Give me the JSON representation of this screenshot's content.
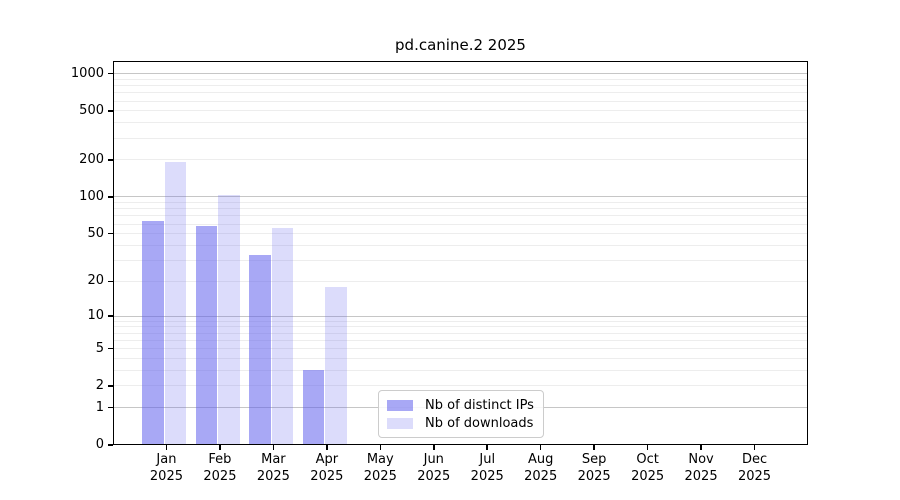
{
  "chart_data": {
    "type": "bar",
    "title": "pd.canine.2 2025",
    "categories": [
      "Jan",
      "Feb",
      "Mar",
      "Apr",
      "May",
      "Jun",
      "Jul",
      "Aug",
      "Sep",
      "Oct",
      "Nov",
      "Dec"
    ],
    "x_year_label": "2025",
    "series": [
      {
        "name": "Nb of distinct IPs",
        "color": "rgba(91,91,236,0.53)",
        "values": [
          63,
          58,
          33,
          3,
          null,
          null,
          null,
          null,
          null,
          null,
          null,
          null
        ]
      },
      {
        "name": "Nb of downloads",
        "color": "rgba(91,91,236,0.213)",
        "values": [
          192,
          103,
          56,
          18,
          null,
          null,
          null,
          null,
          null,
          null,
          null,
          null
        ]
      }
    ],
    "yscale": "log(v+1)",
    "yticks": [
      0,
      1,
      2,
      5,
      10,
      20,
      50,
      100,
      200,
      500,
      1000
    ],
    "major_grid_values": [
      1,
      10,
      100,
      1000
    ],
    "ylim": [
      0,
      1265
    ],
    "grid": true,
    "legend_position": "lower center-right inside plot",
    "colors": {
      "distinct_ips_bar": "rgba(91,91,236,0.53)",
      "downloads_bar": "rgba(91,91,236,0.213)",
      "major_gridline": "#c6c6c6",
      "minor_gridline": "#ededed",
      "axis": "#000000"
    }
  }
}
